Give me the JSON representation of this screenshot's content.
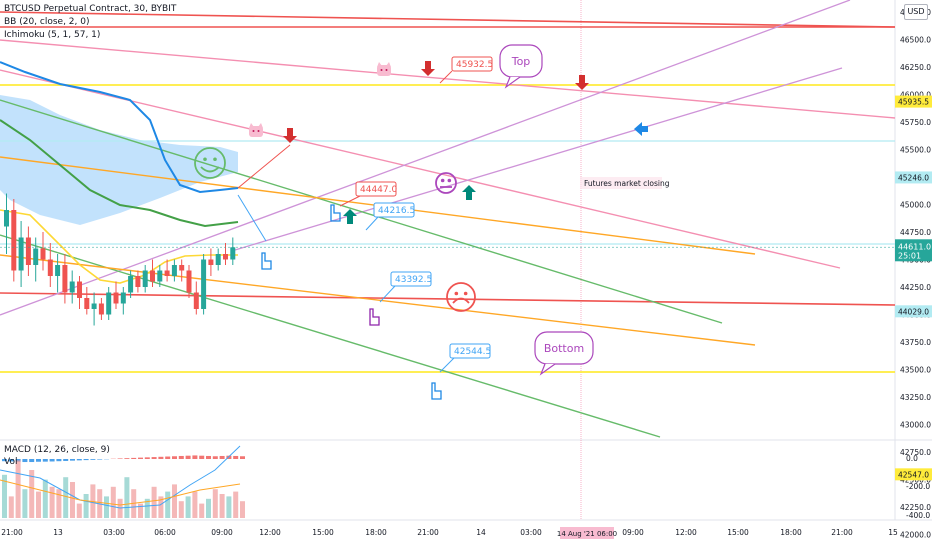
{
  "legend": {
    "symbol": "BTCUSD Perpetual Contract, 30, BYBIT",
    "bb": "BB (20, close, 2, 0)",
    "ichimoku": "Ichimoku (5, 1, 57, 1)",
    "macd": "MACD (12, 26, close, 9)",
    "vol": "Vol"
  },
  "currency": "USD",
  "colors": {
    "up": "#26a69a",
    "down": "#ef5350",
    "cloud": "#90caf9",
    "green_line": "#66bb6a",
    "orange_line": "#ffa726",
    "red_line": "#ef5350",
    "pink_line": "#f48fb1",
    "violet_line": "#ce93d8",
    "yellow_line": "#ffeb3b",
    "bb_blue": "#1e88e5"
  },
  "chart_data": {
    "type": "candlestick",
    "price_axis": {
      "ticks": [
        "46750.0",
        "46500.0",
        "46250.0",
        "46000.0",
        "45750.0",
        "45500.0",
        "45250.0",
        "45000.0",
        "44750.0",
        "44500.0",
        "44250.0",
        "44000.0",
        "43750.0",
        "43500.0",
        "43250.0",
        "43000.0",
        "42750.0",
        "42500.0",
        "42250.0",
        "42000.0"
      ],
      "highlighted": [
        {
          "label": "45935.5",
          "color": "#ffeb3b",
          "text_color": "#131722"
        },
        {
          "label": "45246.0",
          "color": "#b2ebf2",
          "text_color": "#131722"
        },
        {
          "label": "44029.0",
          "color": "#b2ebf2",
          "text_color": "#131722"
        },
        {
          "label": "42547.0",
          "color": "#ffeb3b",
          "text_color": "#131722"
        }
      ],
      "current_price": "44611.0",
      "countdown": "25:01"
    },
    "time_axis": [
      "21:00",
      "13",
      "03:00",
      "06:00",
      "09:00",
      "12:00",
      "15:00",
      "18:00",
      "21:00",
      "14",
      "03:00",
      "06:00",
      "09:00",
      "12:00",
      "15:00",
      "18:00",
      "21:00",
      "15"
    ],
    "time_cursor_label": "14 Aug '21  06:00",
    "macd_axis": [
      "0.0",
      "-200.0",
      "-400.0"
    ],
    "candles": [
      {
        "o": 44800,
        "h": 45100,
        "l": 44550,
        "c": 44950
      },
      {
        "o": 44950,
        "h": 45050,
        "l": 44300,
        "c": 44400
      },
      {
        "o": 44400,
        "h": 44850,
        "l": 44250,
        "c": 44700
      },
      {
        "o": 44700,
        "h": 44800,
        "l": 44350,
        "c": 44450
      },
      {
        "o": 44450,
        "h": 44700,
        "l": 44300,
        "c": 44600
      },
      {
        "o": 44600,
        "h": 44750,
        "l": 44400,
        "c": 44500
      },
      {
        "o": 44500,
        "h": 44650,
        "l": 44250,
        "c": 44350
      },
      {
        "o": 44350,
        "h": 44550,
        "l": 44200,
        "c": 44450
      },
      {
        "o": 44450,
        "h": 44550,
        "l": 44100,
        "c": 44200
      },
      {
        "o": 44200,
        "h": 44400,
        "l": 44100,
        "c": 44300
      },
      {
        "o": 44300,
        "h": 44350,
        "l": 44050,
        "c": 44150
      },
      {
        "o": 44150,
        "h": 44250,
        "l": 44000,
        "c": 44050
      },
      {
        "o": 44050,
        "h": 44200,
        "l": 43900,
        "c": 44100
      },
      {
        "o": 44100,
        "h": 44150,
        "l": 43950,
        "c": 44000
      },
      {
        "o": 44000,
        "h": 44250,
        "l": 43950,
        "c": 44200
      },
      {
        "o": 44200,
        "h": 44300,
        "l": 44050,
        "c": 44100
      },
      {
        "o": 44100,
        "h": 44250,
        "l": 44000,
        "c": 44200
      },
      {
        "o": 44200,
        "h": 44400,
        "l": 44150,
        "c": 44350
      },
      {
        "o": 44350,
        "h": 44400,
        "l": 44200,
        "c": 44250
      },
      {
        "o": 44250,
        "h": 44450,
        "l": 44200,
        "c": 44400
      },
      {
        "o": 44400,
        "h": 44500,
        "l": 44250,
        "c": 44300
      },
      {
        "o": 44300,
        "h": 44450,
        "l": 44250,
        "c": 44400
      },
      {
        "o": 44400,
        "h": 44500,
        "l": 44300,
        "c": 44350
      },
      {
        "o": 44350,
        "h": 44500,
        "l": 44300,
        "c": 44450
      },
      {
        "o": 44450,
        "h": 44500,
        "l": 44300,
        "c": 44400
      },
      {
        "o": 44400,
        "h": 44450,
        "l": 44150,
        "c": 44200
      },
      {
        "o": 44200,
        "h": 44300,
        "l": 44000,
        "c": 44050
      },
      {
        "o": 44050,
        "h": 44550,
        "l": 44000,
        "c": 44500
      },
      {
        "o": 44500,
        "h": 44600,
        "l": 44350,
        "c": 44450
      },
      {
        "o": 44450,
        "h": 44600,
        "l": 44400,
        "c": 44550
      },
      {
        "o": 44550,
        "h": 44650,
        "l": 44450,
        "c": 44500
      },
      {
        "o": 44500,
        "h": 44700,
        "l": 44450,
        "c": 44611
      }
    ],
    "macd_hist": [
      -40,
      -45,
      -50,
      -55,
      -55,
      -50,
      -48,
      -45,
      -40,
      -36,
      -30,
      -25,
      -20,
      -15,
      -10,
      -5,
      5,
      10,
      15,
      20,
      25,
      30,
      35,
      40,
      45,
      50,
      55,
      60,
      65,
      60,
      55,
      50,
      55,
      60,
      55,
      50
    ],
    "volume": [
      180,
      90,
      240,
      120,
      200,
      110,
      160,
      130,
      120,
      170,
      150,
      60,
      100,
      140,
      120,
      90,
      130,
      80,
      170,
      120,
      60,
      80,
      130,
      90,
      110,
      140,
      70,
      90,
      110,
      60,
      80,
      120,
      100,
      90,
      110,
      70
    ],
    "annotations": {
      "price_labels": [
        {
          "text": "45932.5",
          "color": "#ef5350"
        },
        {
          "text": "44447.0",
          "color": "#ef5350"
        },
        {
          "text": "44216.5",
          "color": "#42a5f5"
        },
        {
          "text": "43392.5",
          "color": "#42a5f5"
        },
        {
          "text": "42544.5",
          "color": "#42a5f5"
        }
      ],
      "callouts": [
        {
          "text": "Top",
          "color": "#ab47bc"
        },
        {
          "text": "Bottom",
          "color": "#ab47bc"
        }
      ],
      "note": "Futures market closing"
    }
  }
}
